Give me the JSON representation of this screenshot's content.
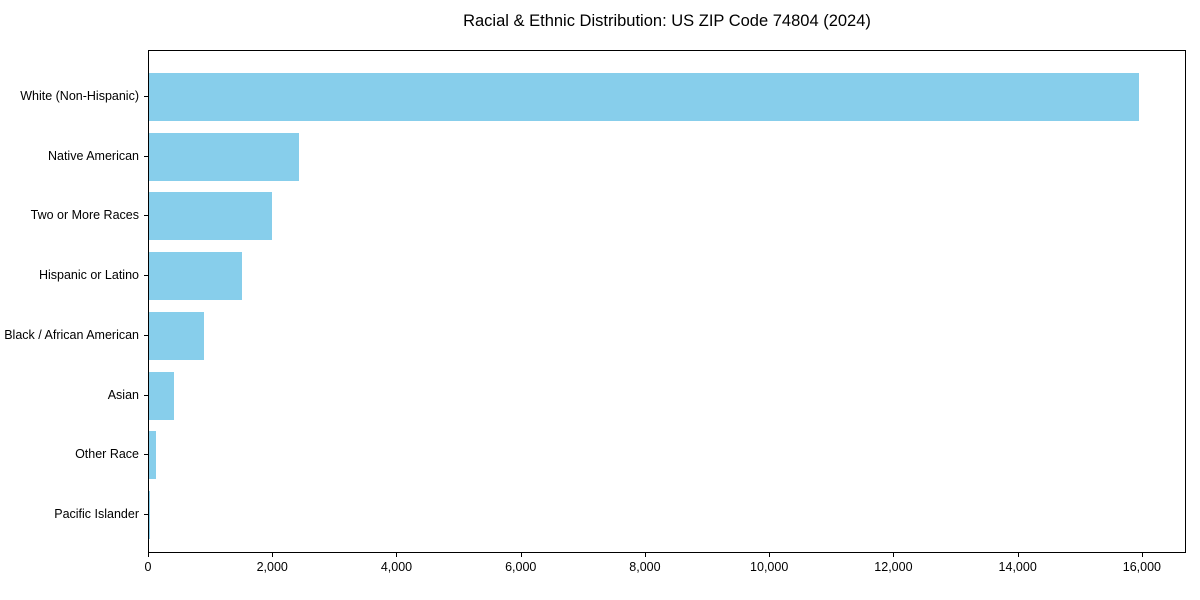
{
  "chart_data": {
    "type": "bar",
    "orientation": "horizontal",
    "title": "Racial & Ethnic Distribution: US ZIP Code 74804 (2024)",
    "categories": [
      "White (Non-Hispanic)",
      "Native American",
      "Two or More Races",
      "Hispanic or Latino",
      "Black / African American",
      "Asian",
      "Other Race",
      "Pacific Islander"
    ],
    "values": [
      15930,
      2410,
      1980,
      1490,
      890,
      410,
      105,
      15
    ],
    "xlabel": "",
    "ylabel": "",
    "xlim": [
      0,
      16710
    ],
    "x_ticks": [
      0,
      2000,
      4000,
      6000,
      8000,
      10000,
      12000,
      14000,
      16000
    ],
    "x_tick_labels": [
      "0",
      "2,000",
      "4,000",
      "6,000",
      "8,000",
      "10,000",
      "12,000",
      "14,000",
      "16,000"
    ],
    "bar_color": "#87CEEB",
    "frame_color": "#000000",
    "background_color": "#ffffff",
    "grid": false,
    "legend": null
  }
}
